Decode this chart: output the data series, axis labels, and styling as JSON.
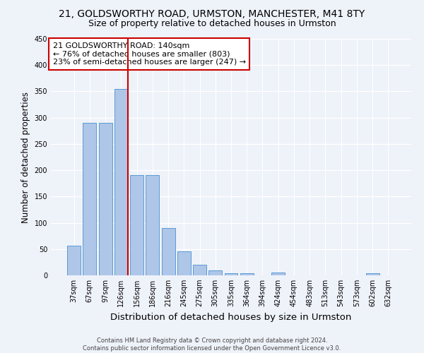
{
  "title1": "21, GOLDSWORTHY ROAD, URMSTON, MANCHESTER, M41 8TY",
  "title2": "Size of property relative to detached houses in Urmston",
  "xlabel": "Distribution of detached houses by size in Urmston",
  "ylabel": "Number of detached properties",
  "categories": [
    "37sqm",
    "67sqm",
    "97sqm",
    "126sqm",
    "156sqm",
    "186sqm",
    "216sqm",
    "245sqm",
    "275sqm",
    "305sqm",
    "335sqm",
    "364sqm",
    "394sqm",
    "424sqm",
    "454sqm",
    "483sqm",
    "513sqm",
    "543sqm",
    "573sqm",
    "602sqm",
    "632sqm"
  ],
  "values": [
    57,
    290,
    290,
    355,
    191,
    191,
    90,
    46,
    20,
    9,
    4,
    4,
    0,
    5,
    0,
    0,
    0,
    0,
    0,
    4,
    0
  ],
  "bar_color": "#aec6e8",
  "bar_edge_color": "#5b9bd5",
  "vline_index": 3,
  "vline_color": "#cc0000",
  "annotation_line1": "21 GOLDSWORTHY ROAD: 140sqm",
  "annotation_line2": "← 76% of detached houses are smaller (803)",
  "annotation_line3": "23% of semi-detached houses are larger (247) →",
  "annotation_box_color": "#cc0000",
  "background_color": "#eef2f9",
  "grid_color": "#ffffff",
  "footnote": "Contains HM Land Registry data © Crown copyright and database right 2024.\nContains public sector information licensed under the Open Government Licence v3.0.",
  "ylim": [
    0,
    450
  ],
  "title1_fontsize": 10,
  "title2_fontsize": 9,
  "xlabel_fontsize": 9.5,
  "ylabel_fontsize": 8.5,
  "tick_fontsize": 7,
  "annot_fontsize": 8,
  "footnote_fontsize": 6
}
